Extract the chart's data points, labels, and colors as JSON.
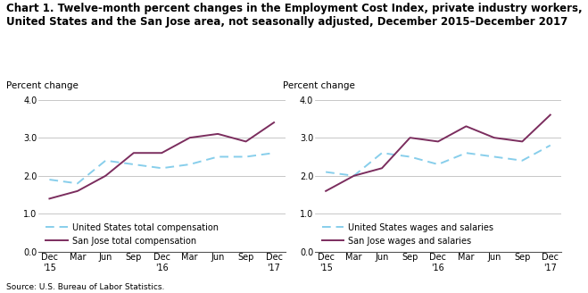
{
  "title_line1": "Chart 1. Twelve-month percent changes in the Employment Cost Index, private industry workers,",
  "title_line2": "United States and the San Jose area, not seasonally adjusted, December 2015–December 2017",
  "ylabel": "Percent change",
  "source": "Source: U.S. Bureau of Labor Statistics.",
  "x_labels": [
    "Dec\n'15",
    "Mar",
    "Jun",
    "Sep",
    "Dec\n'16",
    "Mar",
    "Jun",
    "Sep",
    "Dec\n'17"
  ],
  "us_total_comp": [
    1.9,
    1.8,
    2.4,
    2.3,
    2.2,
    2.3,
    2.5,
    2.5,
    2.6
  ],
  "sj_total_comp": [
    1.4,
    1.6,
    2.0,
    2.6,
    2.6,
    3.0,
    3.1,
    2.9,
    3.4
  ],
  "us_wages_sal": [
    2.1,
    2.0,
    2.6,
    2.5,
    2.3,
    2.6,
    2.5,
    2.4,
    2.8
  ],
  "sj_wages_sal": [
    1.6,
    2.0,
    2.2,
    3.0,
    2.9,
    3.3,
    3.0,
    2.9,
    3.6
  ],
  "us_color": "#87CEEB",
  "sj_color": "#7B2D5E",
  "ylim": [
    0.0,
    4.0
  ],
  "yticks": [
    0.0,
    1.0,
    2.0,
    3.0,
    4.0
  ],
  "legend1_labels": [
    "United States total compensation",
    "San Jose total compensation"
  ],
  "legend2_labels": [
    "United States wages and salaries",
    "San Jose wages and salaries"
  ],
  "title_fontsize": 8.5,
  "label_fontsize": 7.5,
  "tick_fontsize": 7,
  "legend_fontsize": 7,
  "source_fontsize": 6.5
}
